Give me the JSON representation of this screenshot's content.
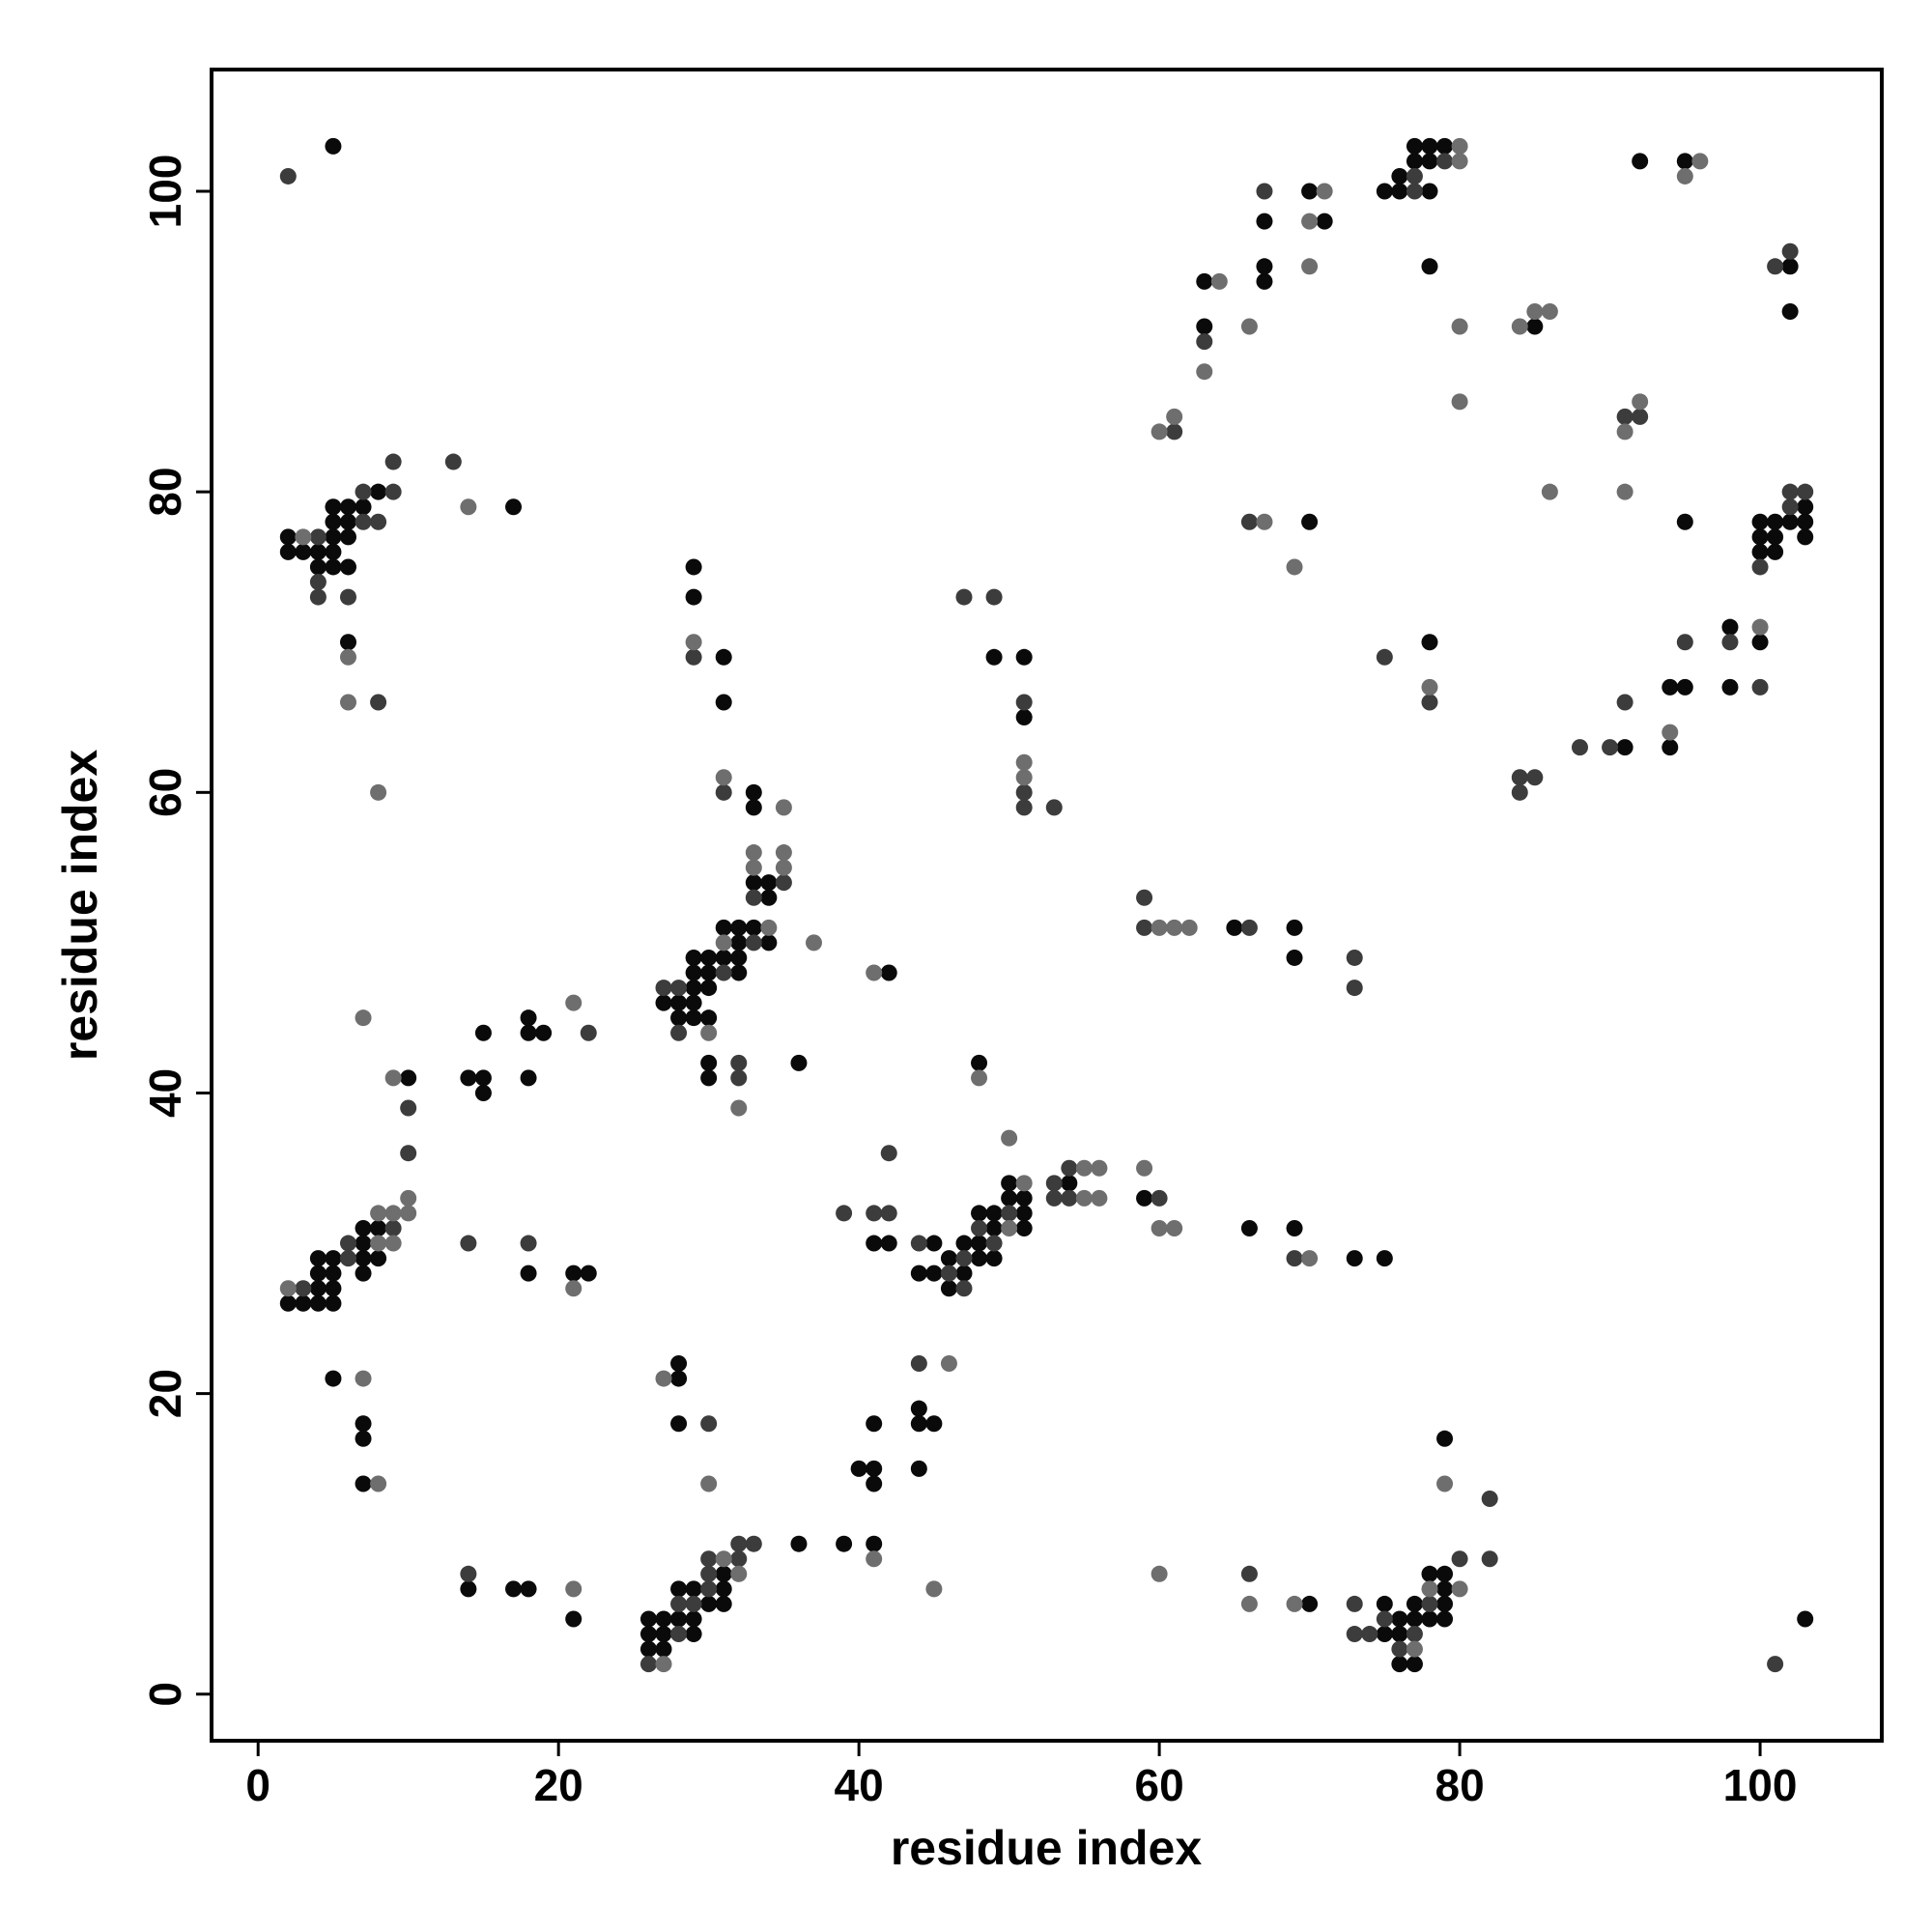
{
  "chart_data": {
    "type": "scatter",
    "xlabel": "residue index",
    "ylabel": "residue index",
    "xlim": [
      -3.1,
      108.1
    ],
    "ylim": [
      -3.1,
      108.1
    ],
    "xticks": [
      0,
      20,
      40,
      60,
      80,
      100
    ],
    "yticks": [
      0,
      20,
      40,
      60,
      80,
      100
    ],
    "grid": false,
    "series": [
      {
        "color": "#0a0a0a",
        "x": [
          5,
          8,
          5,
          6,
          7,
          17,
          5,
          6,
          2,
          5,
          6,
          2,
          3,
          4,
          5,
          4,
          5,
          6,
          6,
          29,
          29,
          31,
          31,
          33,
          33,
          33,
          34,
          34,
          31,
          32,
          33,
          32,
          34,
          29,
          30,
          31,
          32,
          29,
          30,
          32,
          29,
          30,
          27,
          28,
          29,
          28,
          29,
          30,
          30,
          36,
          30,
          42,
          48,
          49,
          51,
          51,
          18,
          18,
          19,
          15,
          14,
          15,
          18,
          15,
          10,
          7,
          8,
          7,
          4,
          5,
          7,
          8,
          4,
          5,
          7,
          4,
          5,
          2,
          3,
          4,
          5,
          18,
          21,
          22,
          5,
          7,
          7,
          7,
          14,
          17,
          18,
          21,
          28,
          28,
          28,
          36,
          39,
          41,
          31,
          28,
          29,
          31,
          30,
          31,
          26,
          27,
          28,
          29,
          26,
          27,
          29,
          26,
          27,
          41,
          40,
          41,
          41,
          44,
          44,
          45,
          44,
          41,
          42,
          50,
          54,
          50,
          51,
          59,
          48,
          49,
          51,
          49,
          51,
          66,
          69,
          45,
          47,
          48,
          46,
          48,
          49,
          73,
          75,
          44,
          45,
          47,
          46,
          65,
          69,
          69,
          63,
          63,
          67,
          67,
          67,
          70,
          71,
          70,
          75,
          76,
          76,
          78,
          77,
          78,
          77,
          78,
          79,
          78,
          85,
          92,
          95,
          102,
          102,
          95,
          103,
          100,
          101,
          102,
          103,
          100,
          101,
          103,
          100,
          101,
          78,
          91,
          94,
          94,
          95,
          98,
          98,
          100,
          79,
          75,
          75,
          76,
          76,
          76,
          77,
          77,
          77,
          78,
          78,
          79,
          79,
          79,
          79,
          70,
          103
        ],
        "y": [
          103,
          80,
          79,
          79,
          79,
          79,
          78,
          78,
          77,
          77,
          77,
          76,
          76,
          76,
          76,
          75,
          75,
          75,
          70,
          75,
          73,
          69,
          66,
          60,
          59,
          54,
          54,
          53,
          51,
          51,
          51,
          50,
          50,
          49,
          49,
          49,
          49,
          48,
          48,
          48,
          47,
          47,
          46,
          46,
          46,
          45,
          45,
          45,
          42,
          42,
          41,
          48,
          42,
          69,
          69,
          65,
          45,
          44,
          44,
          44,
          41,
          41,
          41,
          40,
          41,
          31,
          31,
          30,
          29,
          29,
          29,
          29,
          28,
          28,
          28,
          27,
          27,
          26,
          26,
          26,
          26,
          28,
          28,
          28,
          21,
          18,
          17,
          14,
          7,
          7,
          7,
          5,
          22,
          21,
          18,
          10,
          10,
          10,
          8,
          7,
          7,
          7,
          6,
          6,
          5,
          5,
          5,
          5,
          4,
          4,
          4,
          3,
          3,
          15,
          15,
          14,
          18,
          19,
          18,
          18,
          15,
          30,
          30,
          34,
          34,
          33,
          33,
          33,
          32,
          32,
          32,
          31,
          31,
          31,
          31,
          30,
          30,
          30,
          29,
          29,
          29,
          29,
          29,
          28,
          28,
          28,
          27,
          51,
          51,
          49,
          94,
          91,
          98,
          95,
          94,
          100,
          98,
          78,
          100,
          100,
          101,
          100,
          102,
          102,
          103,
          103,
          103,
          95,
          91,
          102,
          102,
          95,
          92,
          78,
          79,
          78,
          78,
          78,
          78,
          77,
          77,
          77,
          76,
          76,
          70,
          63,
          63,
          67,
          67,
          71,
          67,
          70,
          17,
          4,
          6,
          5,
          4,
          2,
          2,
          5,
          6,
          5,
          8,
          8,
          7,
          6,
          5,
          6,
          5
        ]
      },
      {
        "color": "#3c3c3c",
        "x": [
          2,
          9,
          13,
          7,
          9,
          7,
          8,
          4,
          4,
          4,
          6,
          8,
          29,
          31,
          35,
          33,
          33,
          31,
          27,
          28,
          28,
          32,
          32,
          47,
          49,
          51,
          51,
          51,
          53,
          22,
          10,
          10,
          9,
          6,
          6,
          3,
          14,
          18,
          14,
          30,
          32,
          33,
          30,
          32,
          30,
          30,
          28,
          29,
          28,
          26,
          44,
          39,
          41,
          42,
          42,
          53,
          54,
          53,
          54,
          60,
          50,
          48,
          44,
          49,
          47,
          69,
          46,
          47,
          59,
          59,
          66,
          73,
          73,
          61,
          63,
          67,
          66,
          77,
          77,
          79,
          101,
          102,
          91,
          92,
          102,
          103,
          102,
          100,
          75,
          78,
          84,
          85,
          84,
          88,
          90,
          91,
          95,
          98,
          100,
          82,
          73,
          73,
          74,
          75,
          76,
          77,
          78,
          80,
          82,
          66,
          101
        ],
        "y": [
          101,
          82,
          82,
          80,
          80,
          78,
          78,
          77,
          74,
          73,
          73,
          66,
          69,
          60,
          54,
          53,
          50,
          48,
          47,
          47,
          44,
          42,
          41,
          73,
          73,
          66,
          60,
          59,
          59,
          44,
          39,
          36,
          31,
          30,
          29,
          27,
          30,
          30,
          8,
          18,
          10,
          10,
          9,
          9,
          8,
          7,
          6,
          6,
          4,
          2,
          22,
          32,
          32,
          32,
          36,
          34,
          35,
          33,
          33,
          33,
          32,
          31,
          30,
          30,
          29,
          29,
          28,
          27,
          53,
          51,
          51,
          49,
          47,
          84,
          90,
          100,
          78,
          101,
          100,
          102,
          95,
          96,
          85,
          85,
          80,
          80,
          79,
          75,
          69,
          66,
          61,
          61,
          60,
          63,
          63,
          66,
          70,
          70,
          67,
          13,
          6,
          4,
          4,
          5,
          3,
          4,
          6,
          9,
          9,
          8,
          2
        ]
      },
      {
        "color": "#6e6e6e",
        "x": [
          3,
          14,
          6,
          6,
          8,
          29,
          31,
          35,
          33,
          35,
          33,
          35,
          34,
          31,
          37,
          30,
          32,
          41,
          48,
          51,
          51,
          7,
          21,
          9,
          10,
          10,
          9,
          8,
          8,
          9,
          2,
          21,
          7,
          8,
          21,
          27,
          30,
          31,
          41,
          32,
          45,
          27,
          46,
          50,
          55,
          56,
          59,
          51,
          55,
          56,
          50,
          60,
          61,
          70,
          60,
          61,
          62,
          60,
          61,
          64,
          63,
          66,
          71,
          70,
          70,
          67,
          69,
          80,
          80,
          80,
          80,
          84,
          85,
          86,
          96,
          95,
          92,
          91,
          91,
          86,
          78,
          94,
          100,
          79,
          77,
          78,
          80,
          60,
          66,
          69
        ],
        "y": [
          77,
          79,
          69,
          66,
          60,
          70,
          61,
          59,
          56,
          56,
          55,
          55,
          51,
          50,
          50,
          44,
          39,
          48,
          41,
          62,
          61,
          45,
          46,
          41,
          33,
          32,
          32,
          32,
          30,
          30,
          27,
          27,
          21,
          14,
          7,
          21,
          14,
          9,
          9,
          8,
          7,
          2,
          22,
          37,
          35,
          35,
          35,
          34,
          33,
          33,
          31,
          31,
          31,
          29,
          51,
          51,
          51,
          84,
          85,
          94,
          88,
          91,
          100,
          98,
          95,
          78,
          75,
          103,
          102,
          91,
          86,
          91,
          92,
          92,
          102,
          101,
          86,
          84,
          80,
          80,
          67,
          64,
          71,
          14,
          3,
          7,
          7,
          8,
          6,
          6
        ]
      }
    ]
  }
}
